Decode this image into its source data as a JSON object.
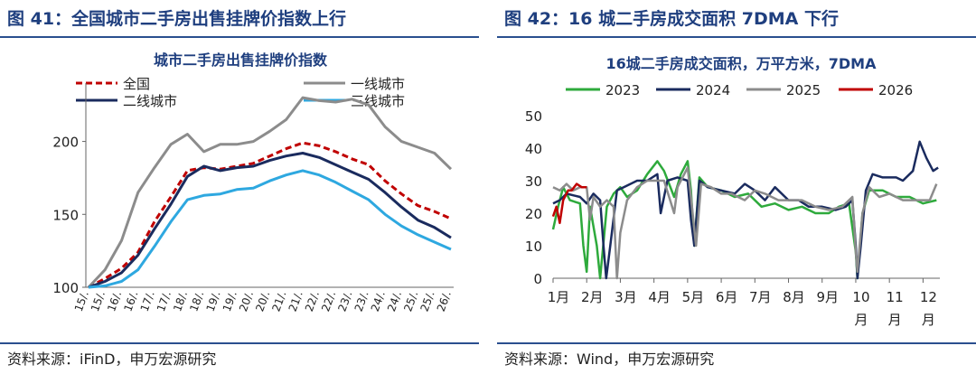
{
  "left": {
    "figure_title": "图 41：全国城市二手房出售挂牌价指数上行",
    "source": "资料来源：iFinD，申万宏源研究"
  },
  "right": {
    "figure_title": "图 42：16 城二手房成交面积 7DMA 下行",
    "source": "资料来源：Wind，申万宏源研究"
  },
  "chart_data": [
    {
      "type": "line",
      "title": "城市二手房出售挂牌价指数",
      "xlabel": "",
      "ylabel": "",
      "ylim": [
        100,
        240
      ],
      "yticks": [
        100,
        150,
        200
      ],
      "grid": false,
      "legend_position": "top",
      "x": [
        "15/01",
        "15/07",
        "16/01",
        "16/07",
        "17/01",
        "17/07",
        "18/01",
        "18/07",
        "19/01",
        "19/07",
        "20/01",
        "20/07",
        "21/01",
        "21/07",
        "22/01",
        "22/07",
        "23/01",
        "23/07",
        "24/01",
        "24/07",
        "25/01",
        "25/07",
        "26/01"
      ],
      "x_tick_labels": [
        "15/.",
        "15/.",
        "16/.",
        "16/.",
        "17/.",
        "17/.",
        "18/.",
        "18/.",
        "19/.",
        "19/.",
        "20/.",
        "20/.",
        "21/.",
        "21/.",
        "22/.",
        "22/.",
        "23/.",
        "23/.",
        "24/.",
        "24/.",
        "25/.",
        "25/.",
        "26/."
      ],
      "series": [
        {
          "name": "全国",
          "color": "#c00000",
          "dash": true,
          "values": [
            100,
            106,
            113,
            124,
            145,
            162,
            180,
            182,
            181,
            183,
            185,
            190,
            195,
            199,
            197,
            193,
            188,
            184,
            173,
            164,
            156,
            152,
            147
          ]
        },
        {
          "name": "一线城市",
          "color": "#8c8c8c",
          "dash": false,
          "values": [
            100,
            112,
            132,
            165,
            182,
            198,
            205,
            193,
            198,
            198,
            200,
            207,
            215,
            230,
            228,
            227,
            229,
            225,
            210,
            200,
            196,
            192,
            181
          ]
        },
        {
          "name": "二线城市",
          "color": "#1a2b5e",
          "dash": false,
          "values": [
            100,
            104,
            110,
            122,
            140,
            157,
            176,
            183,
            180,
            182,
            183,
            187,
            190,
            192,
            189,
            184,
            179,
            174,
            165,
            155,
            146,
            141,
            134
          ]
        },
        {
          "name": "三线城市",
          "color": "#2ea8e0",
          "dash": false,
          "values": [
            100,
            101,
            104,
            112,
            128,
            145,
            160,
            163,
            164,
            167,
            168,
            173,
            177,
            180,
            177,
            172,
            166,
            160,
            150,
            142,
            136,
            131,
            126
          ]
        }
      ]
    },
    {
      "type": "line",
      "title": "16城二手房成交面积，万平方米，7DMA",
      "xlabel": "",
      "ylabel": "",
      "ylim": [
        0,
        50
      ],
      "yticks": [
        0,
        10,
        20,
        30,
        40,
        50
      ],
      "grid": false,
      "legend_position": "top",
      "x_tick_labels": [
        "1月",
        "2月",
        "3月",
        "4月",
        "5月",
        "6月",
        "7月",
        "8月",
        "9月",
        "10 月",
        "11 月",
        "12 月"
      ],
      "series": [
        {
          "name": "2023",
          "color": "#2eaa3c",
          "points": [
            [
              0,
              15
            ],
            [
              0.15,
              22
            ],
            [
              0.3,
              28
            ],
            [
              0.5,
              24
            ],
            [
              0.8,
              23
            ],
            [
              0.9,
              10
            ],
            [
              1.0,
              2
            ],
            [
              1.1,
              22
            ],
            [
              1.3,
              10
            ],
            [
              1.4,
              0
            ],
            [
              1.6,
              22
            ],
            [
              1.8,
              26
            ],
            [
              2.0,
              28
            ],
            [
              2.2,
              25
            ],
            [
              2.5,
              27
            ],
            [
              2.8,
              32
            ],
            [
              3.1,
              36
            ],
            [
              3.3,
              33
            ],
            [
              3.6,
              25
            ],
            [
              3.8,
              32
            ],
            [
              4.0,
              36
            ],
            [
              4.1,
              27
            ],
            [
              4.2,
              10
            ],
            [
              4.35,
              31
            ],
            [
              4.6,
              28
            ],
            [
              5.0,
              27
            ],
            [
              5.4,
              25
            ],
            [
              5.8,
              26
            ],
            [
              6.2,
              22
            ],
            [
              6.6,
              23
            ],
            [
              7.0,
              21
            ],
            [
              7.4,
              22
            ],
            [
              7.8,
              20
            ],
            [
              8.2,
              20
            ],
            [
              8.5,
              22
            ],
            [
              8.8,
              23
            ],
            [
              9.0,
              8
            ],
            [
              9.05,
              0
            ],
            [
              9.2,
              20
            ],
            [
              9.4,
              27
            ],
            [
              9.8,
              27
            ],
            [
              10.2,
              25
            ],
            [
              10.6,
              25
            ],
            [
              11.0,
              23
            ],
            [
              11.4,
              24
            ]
          ]
        },
        {
          "name": "2024",
          "color": "#1a2b5e",
          "points": [
            [
              0,
              23
            ],
            [
              0.2,
              24
            ],
            [
              0.4,
              26
            ],
            [
              0.8,
              25
            ],
            [
              1.0,
              23
            ],
            [
              1.2,
              26
            ],
            [
              1.4,
              24
            ],
            [
              1.5,
              10
            ],
            [
              1.58,
              0
            ],
            [
              1.7,
              10
            ],
            [
              1.9,
              27
            ],
            [
              2.1,
              28
            ],
            [
              2.5,
              30
            ],
            [
              2.8,
              30
            ],
            [
              3.1,
              32
            ],
            [
              3.2,
              20
            ],
            [
              3.4,
              30
            ],
            [
              3.7,
              31
            ],
            [
              4.0,
              30
            ],
            [
              4.1,
              18
            ],
            [
              4.2,
              10
            ],
            [
              4.35,
              30
            ],
            [
              4.6,
              28
            ],
            [
              5.0,
              27
            ],
            [
              5.4,
              26
            ],
            [
              5.7,
              29
            ],
            [
              6.0,
              27
            ],
            [
              6.3,
              24
            ],
            [
              6.6,
              28
            ],
            [
              7.0,
              24
            ],
            [
              7.3,
              24
            ],
            [
              7.6,
              22
            ],
            [
              8.0,
              22
            ],
            [
              8.4,
              21
            ],
            [
              8.7,
              22
            ],
            [
              8.9,
              24
            ],
            [
              9.0,
              10
            ],
            [
              9.05,
              0
            ],
            [
              9.15,
              10
            ],
            [
              9.3,
              27
            ],
            [
              9.5,
              32
            ],
            [
              9.8,
              31
            ],
            [
              10.2,
              31
            ],
            [
              10.4,
              30
            ],
            [
              10.7,
              33
            ],
            [
              10.9,
              42
            ],
            [
              11.1,
              37
            ],
            [
              11.3,
              33
            ],
            [
              11.45,
              34
            ]
          ]
        },
        {
          "name": "2025",
          "color": "#8c8c8c",
          "points": [
            [
              0,
              28
            ],
            [
              0.2,
              27
            ],
            [
              0.4,
              29
            ],
            [
              0.6,
              27
            ],
            [
              0.8,
              28
            ],
            [
              1.0,
              28
            ],
            [
              1.1,
              18
            ],
            [
              1.2,
              25
            ],
            [
              1.4,
              22
            ],
            [
              1.6,
              24
            ],
            [
              1.8,
              22
            ],
            [
              1.9,
              0
            ],
            [
              2.0,
              14
            ],
            [
              2.2,
              24
            ],
            [
              2.5,
              28
            ],
            [
              2.8,
              30
            ],
            [
              3.1,
              30
            ],
            [
              3.3,
              30
            ],
            [
              3.6,
              20
            ],
            [
              3.7,
              28
            ],
            [
              4.0,
              34
            ],
            [
              4.1,
              25
            ],
            [
              4.25,
              10
            ],
            [
              4.4,
              29
            ],
            [
              4.7,
              28
            ],
            [
              5.0,
              26
            ],
            [
              5.3,
              26
            ],
            [
              5.7,
              24
            ],
            [
              6.0,
              27
            ],
            [
              6.3,
              26
            ],
            [
              6.7,
              24
            ],
            [
              7.0,
              24
            ],
            [
              7.4,
              24
            ],
            [
              7.8,
              22
            ],
            [
              8.2,
              21
            ],
            [
              8.6,
              22
            ],
            [
              8.9,
              25
            ],
            [
              9.0,
              8
            ],
            [
              9.05,
              2
            ],
            [
              9.2,
              20
            ],
            [
              9.4,
              28
            ],
            [
              9.7,
              25
            ],
            [
              10.0,
              26
            ],
            [
              10.4,
              24
            ],
            [
              10.8,
              24
            ],
            [
              11.2,
              24
            ],
            [
              11.4,
              29
            ]
          ]
        },
        {
          "name": "2026",
          "color": "#c00000",
          "points": [
            [
              0,
              19
            ],
            [
              0.1,
              22
            ],
            [
              0.2,
              17
            ],
            [
              0.3,
              24
            ],
            [
              0.45,
              27
            ],
            [
              0.55,
              27
            ],
            [
              0.7,
              29
            ],
            [
              0.85,
              28
            ],
            [
              1.0,
              28
            ]
          ]
        }
      ]
    }
  ]
}
